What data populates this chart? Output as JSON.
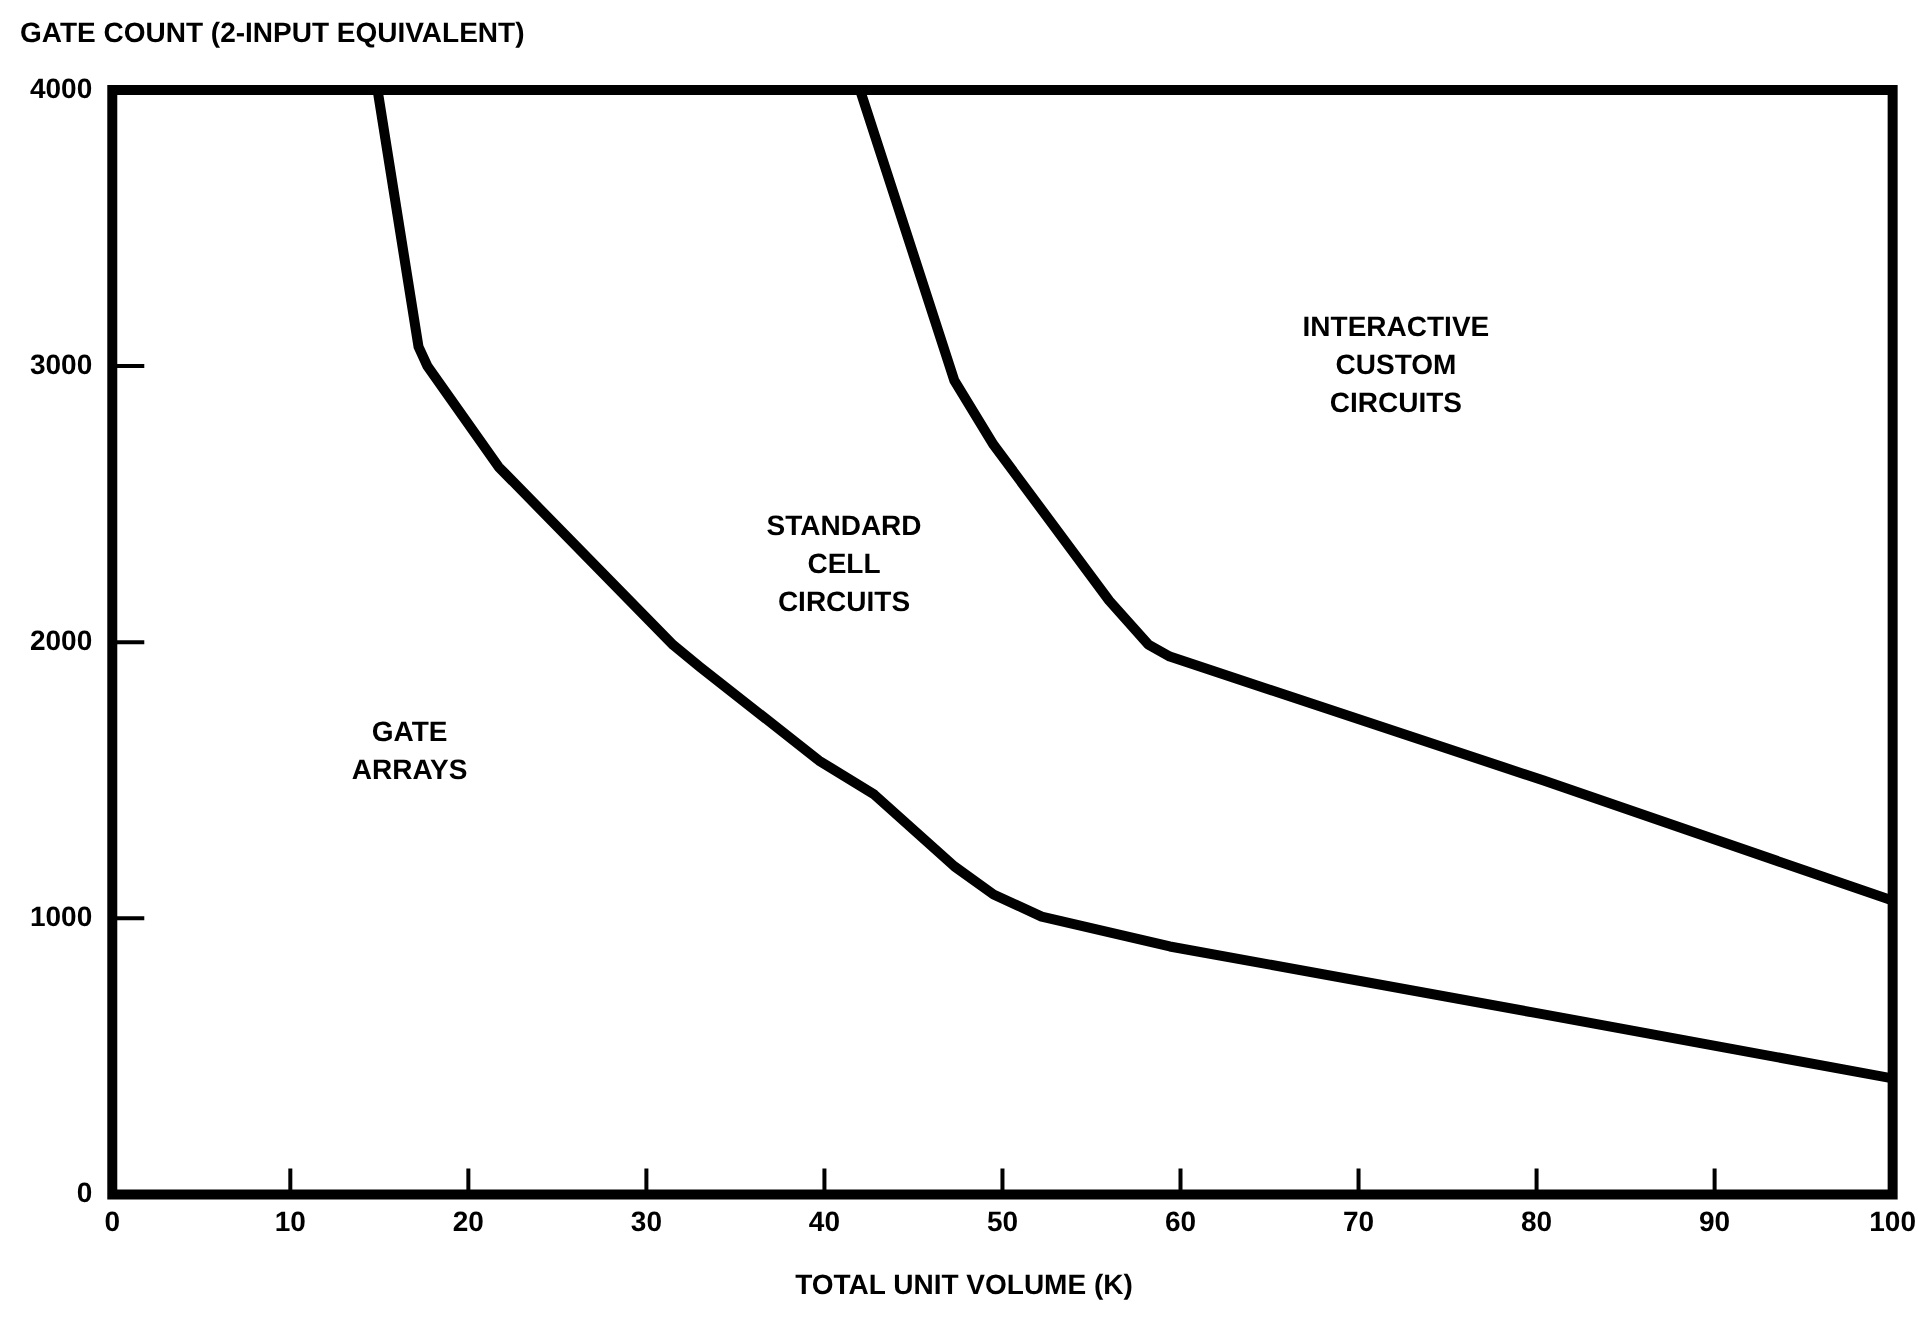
{
  "chart_data": {
    "type": "line",
    "xlabel": "TOTAL UNIT VOLUME (K)",
    "ylabel": "GATE COUNT (2-INPUT EQUIVALENT)",
    "xlim": [
      0,
      100
    ],
    "xticks": [
      0,
      10,
      20,
      30,
      40,
      50,
      60,
      70,
      80,
      90,
      100
    ],
    "ylim": [
      0,
      4000
    ],
    "yticks": [
      0,
      1000,
      2000,
      3000,
      4000
    ],
    "grid": false,
    "legend": false,
    "marker": "none",
    "line_style": "solid",
    "series": [
      {
        "color": "#000000",
        "x": [
          14.9,
          17.2,
          17.7,
          21.7,
          31.5,
          33.0,
          39.7,
          42.8,
          47.3,
          49.5,
          52.2,
          59.4,
          80.4,
          100
        ],
        "values": [
          4000,
          3070,
          3000,
          2635,
          1990,
          1911,
          1571,
          1448,
          1188,
          1086,
          1006,
          898,
          652,
          420
        ]
      },
      {
        "color": "#000000",
        "x": [
          42.0,
          47.3,
          49.5,
          56.0,
          58.2,
          59.4,
          80.4,
          100
        ],
        "values": [
          4000,
          2947,
          2715,
          2150,
          1991,
          1948,
          1499,
          1064
        ]
      }
    ],
    "annotations": [
      "GATE\nARRAYS",
      "STANDARD\nCELL\nCIRCUITS",
      "INTERACTIVE\nCUSTOM\nCIRCUITS"
    ]
  }
}
